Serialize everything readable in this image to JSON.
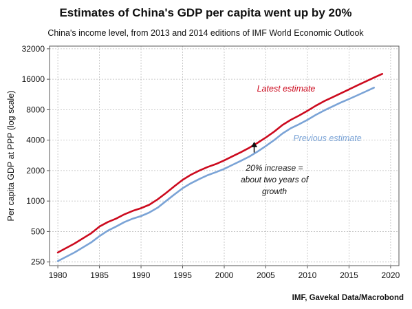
{
  "chart_data": {
    "type": "line",
    "title": "Estimates of China's GDP per capita went up by 20%",
    "subtitle": "China's income level, from 2013 and 2014 editions of IMF World Economic Outlook",
    "xlabel": "",
    "ylabel": "Per capita GDP at PPP (log scale)",
    "y_scale": "log",
    "xlim": [
      1979,
      2021
    ],
    "ylim": [
      230,
      34000
    ],
    "x_ticks": [
      1980,
      1985,
      1990,
      1995,
      2000,
      2005,
      2010,
      2015,
      2020
    ],
    "y_ticks": [
      250,
      500,
      1000,
      2000,
      4000,
      8000,
      16000,
      32000
    ],
    "grid": true,
    "grid_style": "dashed",
    "series": [
      {
        "name": "Latest estimate",
        "color": "#cc0a1e",
        "x": [
          1980,
          1982,
          1984,
          1985,
          1986,
          1987,
          1988,
          1989,
          1990,
          1991,
          1992,
          1993,
          1994,
          1995,
          1996,
          1997,
          1998,
          1999,
          2000,
          2001,
          2002,
          2003,
          2004,
          2005,
          2006,
          2007,
          2008,
          2009,
          2010,
          2011,
          2012,
          2013,
          2014,
          2015,
          2016,
          2017,
          2018,
          2019
        ],
        "y": [
          310,
          380,
          480,
          560,
          620,
          670,
          740,
          800,
          850,
          920,
          1040,
          1200,
          1400,
          1620,
          1820,
          2000,
          2170,
          2320,
          2520,
          2770,
          3040,
          3360,
          3760,
          4250,
          4850,
          5650,
          6350,
          7000,
          7800,
          8750,
          9700,
          10600,
          11600,
          12700,
          13900,
          15200,
          16600,
          18100
        ]
      },
      {
        "name": "Previous estimate",
        "color": "#7aa3d6",
        "x": [
          1980,
          1982,
          1984,
          1985,
          1986,
          1987,
          1988,
          1989,
          1990,
          1991,
          1992,
          1993,
          1994,
          1995,
          1996,
          1997,
          1998,
          1999,
          2000,
          2001,
          2002,
          2003,
          2004,
          2005,
          2006,
          2007,
          2008,
          2009,
          2010,
          2011,
          2012,
          2013,
          2014,
          2015,
          2016,
          2017,
          2018
        ],
        "y": [
          255,
          310,
          390,
          450,
          510,
          560,
          620,
          670,
          710,
          770,
          860,
          1000,
          1160,
          1340,
          1500,
          1650,
          1800,
          1930,
          2080,
          2280,
          2500,
          2750,
          3080,
          3500,
          4000,
          4650,
          5250,
          5750,
          6350,
          7100,
          7850,
          8600,
          9400,
          10200,
          11100,
          12100,
          13200
        ]
      }
    ],
    "annotations": [
      {
        "lines": [
          "20% increase =",
          "about two years of",
          "growth"
        ],
        "arrow_x": 2003.6,
        "arrow_from": 3020,
        "arrow_to": 3800
      }
    ],
    "source": "IMF, Gavekal Data/Macrobond"
  }
}
